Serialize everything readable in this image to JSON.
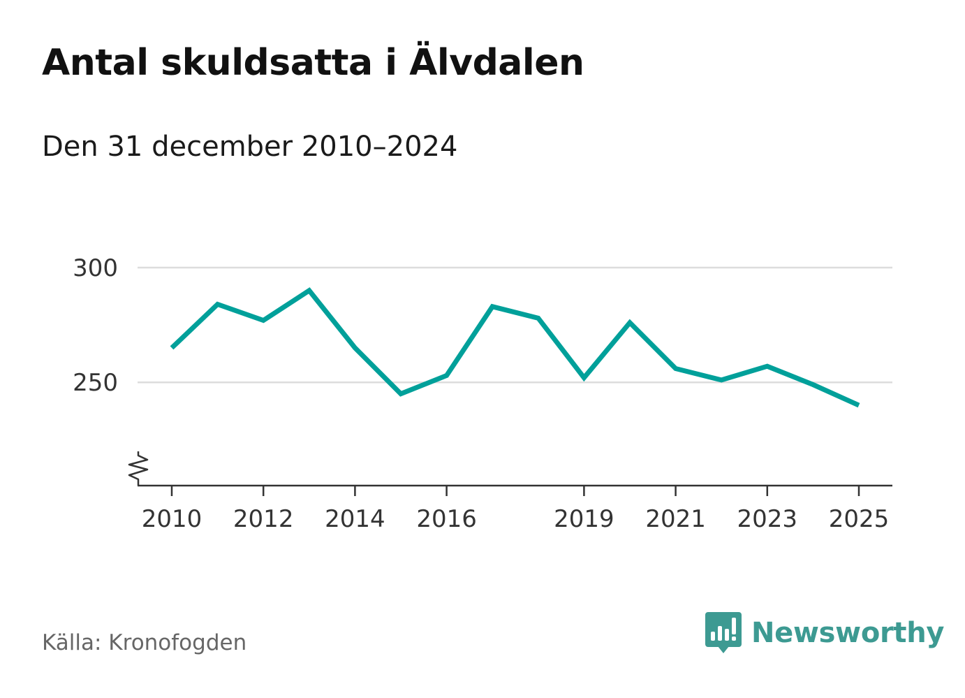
{
  "chart_data": {
    "type": "line",
    "title": "Antal skuldsatta i Älvdalen",
    "subtitle": "Den 31 december 2010–2024",
    "xlabel": "",
    "ylabel": "",
    "x_tick_labels": [
      "2010",
      "2012",
      "2014",
      "2016",
      "2019",
      "2021",
      "2023",
      "2025"
    ],
    "y_tick_labels": [
      "300",
      "250"
    ],
    "ylim": [
      205,
      300
    ],
    "xlim": [
      2010,
      2025
    ],
    "grid": true,
    "y_axis_break": true,
    "series": [
      {
        "name": "Antal skuldsatta",
        "color": "#00a09a",
        "x": [
          2010,
          2011,
          2012,
          2013,
          2014,
          2015,
          2016,
          2017,
          2018,
          2019,
          2020,
          2021,
          2022,
          2023,
          2024,
          2025
        ],
        "values": [
          265,
          284,
          277,
          290,
          265,
          245,
          253,
          283,
          278,
          252,
          276,
          256,
          251,
          257,
          249,
          240
        ]
      }
    ]
  },
  "footer": {
    "source": "Källa: Kronofogden",
    "brand": "Newsworthy",
    "brand_color": "#3d9a92"
  }
}
